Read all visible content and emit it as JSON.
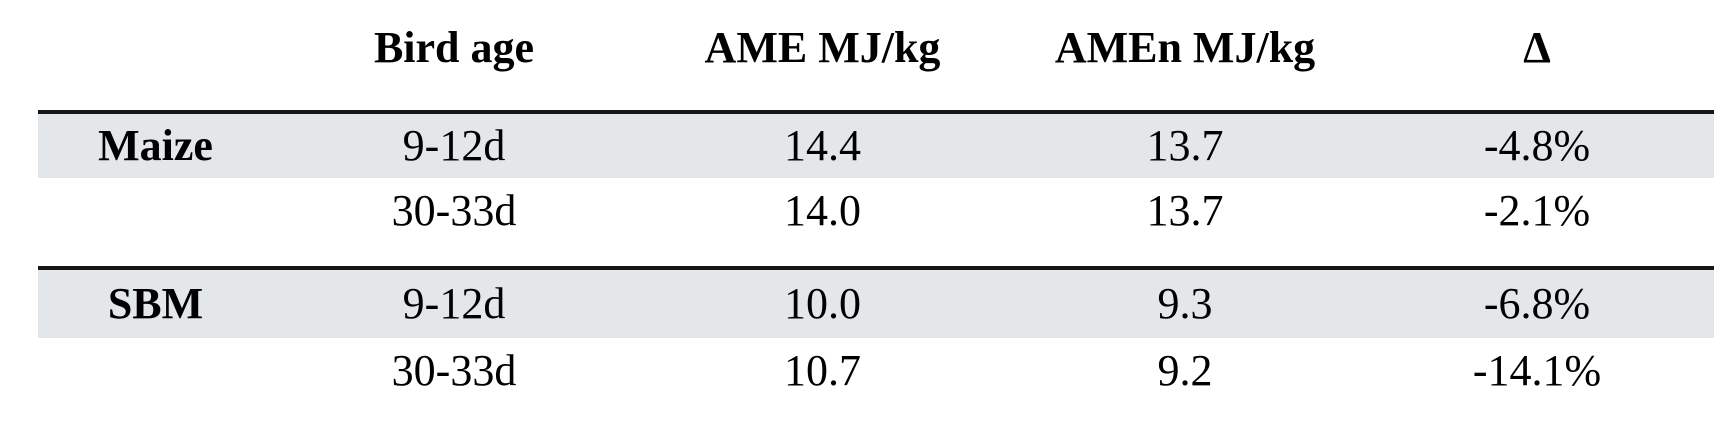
{
  "chart_data": {
    "type": "table",
    "columns": [
      "",
      "Bird age",
      "AME MJ/kg",
      "AMEn MJ/kg",
      "Δ"
    ],
    "rows": [
      [
        "Maize",
        "9-12d",
        "14.4",
        "13.7",
        "-4.8%"
      ],
      [
        "",
        "30-33d",
        "14.0",
        "13.7",
        "-2.1%"
      ],
      [
        "SBM",
        "9-12d",
        "10.0",
        "9.3",
        "-6.8%"
      ],
      [
        "",
        "30-33d",
        "10.7",
        "9.2",
        "-14.1%"
      ]
    ],
    "sections": [
      {
        "feed": "Maize",
        "measurements": [
          {
            "bird_age": "9-12d",
            "ame_mj_kg": 14.4,
            "amen_mj_kg": 13.7,
            "delta_pct": -4.8
          },
          {
            "bird_age": "30-33d",
            "ame_mj_kg": 14.0,
            "amen_mj_kg": 13.7,
            "delta_pct": -2.1
          }
        ]
      },
      {
        "feed": "SBM",
        "measurements": [
          {
            "bird_age": "9-12d",
            "ame_mj_kg": 10.0,
            "amen_mj_kg": 9.3,
            "delta_pct": -6.8
          },
          {
            "bird_age": "30-33d",
            "ame_mj_kg": 10.7,
            "amen_mj_kg": 9.2,
            "delta_pct": -14.1
          }
        ]
      }
    ],
    "layout": {
      "shaded_row_indexes": [
        0,
        2
      ],
      "rules_above_rows": [
        0,
        2
      ],
      "grid": "off",
      "legend": "none"
    }
  },
  "colors": {
    "shade": "#e4e7ea",
    "rule": "#161616",
    "text": "#000000",
    "background": "#ffffff"
  }
}
